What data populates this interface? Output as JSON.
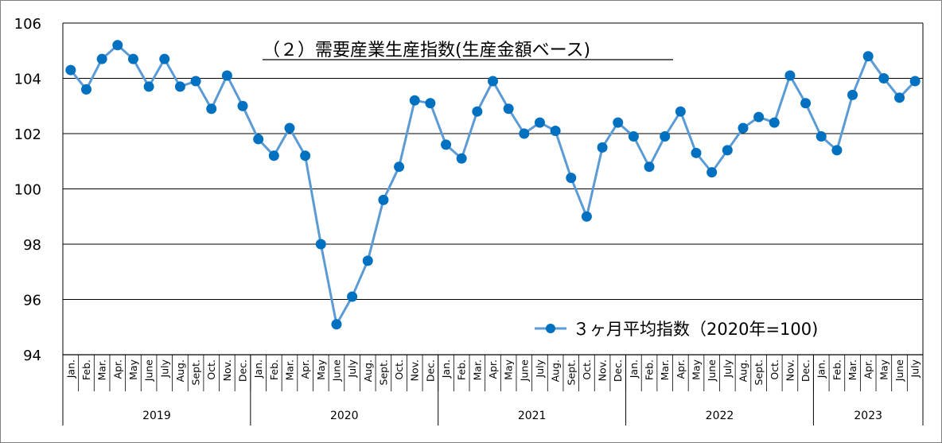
{
  "chart_data": {
    "type": "line",
    "title": "（２）需要産業生産指数(生産金額ベース)",
    "ylim": [
      94,
      106
    ],
    "yticks": [
      "94",
      "96",
      "98",
      "100",
      "102",
      "104",
      "106"
    ],
    "grid": true,
    "legend_position": "bottom-right",
    "years": [
      {
        "label": "2019",
        "months": [
          "Jan.",
          "Feb.",
          "Mar.",
          "Apr.",
          "May",
          "June",
          "July",
          "Aug.",
          "Sept.",
          "Oct.",
          "Nov.",
          "Dec."
        ]
      },
      {
        "label": "2020",
        "months": [
          "Jan.",
          "Feb.",
          "Mar.",
          "Apr.",
          "May",
          "June",
          "July",
          "Aug.",
          "Sept.",
          "Oct.",
          "Nov.",
          "Dec."
        ]
      },
      {
        "label": "2021",
        "months": [
          "Jan.",
          "Feb.",
          "Mar.",
          "Apr.",
          "May",
          "June",
          "July",
          "Aug.",
          "Sept.",
          "Oct.",
          "Nov.",
          "Dec."
        ]
      },
      {
        "label": "2022",
        "months": [
          "Jan.",
          "Feb.",
          "Mar.",
          "Apr.",
          "May",
          "June",
          "July",
          "Aug.",
          "Sept.",
          "Oct.",
          "Nov.",
          "Dec."
        ]
      },
      {
        "label": "2023",
        "months": [
          "Jan.",
          "Feb.",
          "Mar.",
          "Apr.",
          "May",
          "June",
          "July"
        ]
      }
    ],
    "series": [
      {
        "name": "３ヶ月平均指数（2020年=100)",
        "color": "#0070C0",
        "line_color": "#5B9BD5",
        "values": [
          104.3,
          103.6,
          104.7,
          105.2,
          104.7,
          103.7,
          104.7,
          103.7,
          103.9,
          102.9,
          104.1,
          103.0,
          101.8,
          101.2,
          102.2,
          101.2,
          98.0,
          95.1,
          96.1,
          97.4,
          99.6,
          100.8,
          103.2,
          103.1,
          101.6,
          101.1,
          102.8,
          103.9,
          102.9,
          102.0,
          102.4,
          102.1,
          100.4,
          99.0,
          101.5,
          102.4,
          101.9,
          100.8,
          101.9,
          102.8,
          101.3,
          100.6,
          101.4,
          102.2,
          102.6,
          102.4,
          104.1,
          103.1,
          101.9,
          101.4,
          103.4,
          104.8,
          104.0,
          103.3,
          103.9
        ]
      }
    ]
  }
}
